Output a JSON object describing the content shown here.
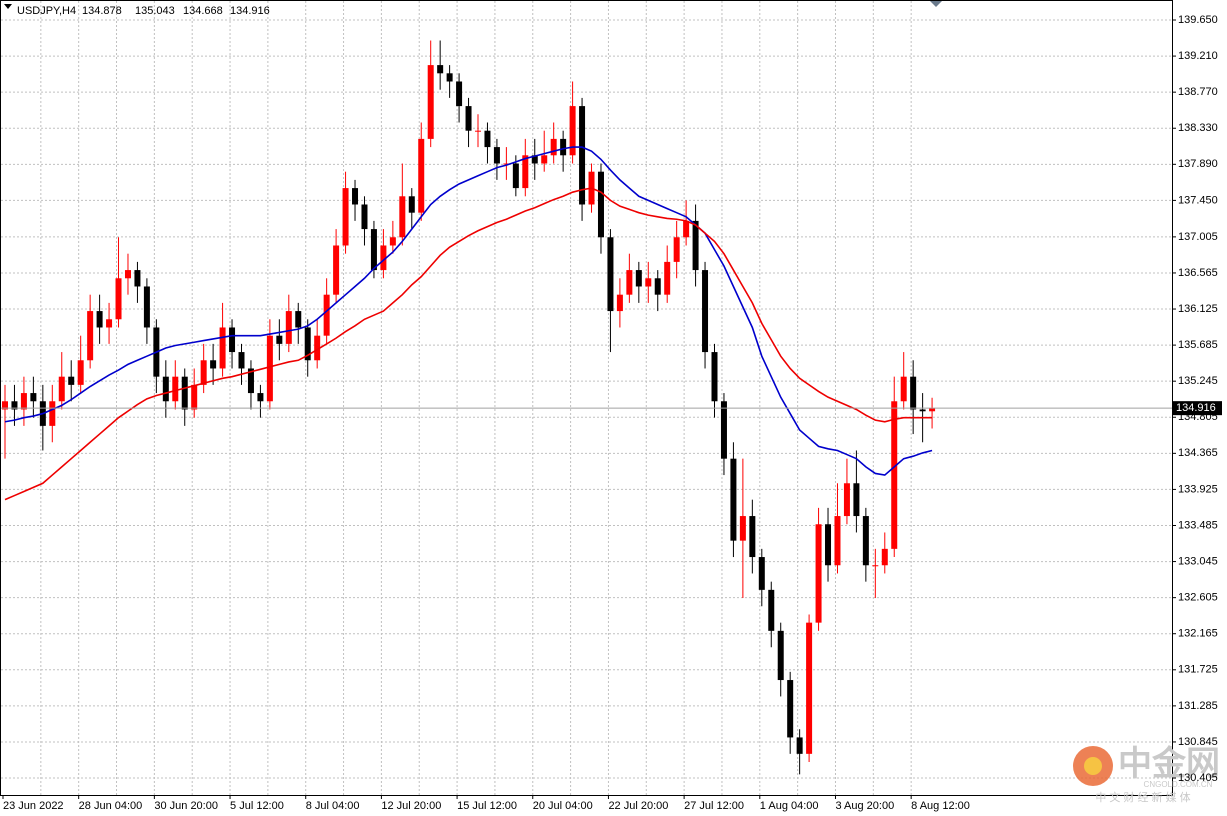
{
  "chart_data": {
    "type": "candlestick",
    "title": "USDJPY,H4",
    "categories": [
      "23 Jun 2022",
      null,
      null,
      null,
      null,
      null,
      null,
      null,
      "28 Jun 04:00",
      null,
      null,
      null,
      null,
      null,
      null,
      null,
      "30 Jun 20:00",
      null,
      null,
      null,
      null,
      null,
      null,
      null,
      "5 Jul 12:00",
      null,
      null,
      null,
      null,
      null,
      null,
      null,
      "8 Jul 04:00",
      null,
      null,
      null,
      null,
      null,
      null,
      null,
      "12 Jul 20:00",
      null,
      null,
      null,
      null,
      null,
      null,
      null,
      "15 Jul 12:00",
      null,
      null,
      null,
      null,
      null,
      null,
      null,
      "20 Jul 04:00",
      null,
      null,
      null,
      null,
      null,
      null,
      null,
      "22 Jul 20:00",
      null,
      null,
      null,
      null,
      null,
      null,
      null,
      "27 Jul 12:00",
      null,
      null,
      null,
      null,
      null,
      null,
      null,
      "1 Aug 04:00",
      null,
      null,
      null,
      null,
      null,
      null,
      null,
      "3 Aug 20:00",
      null,
      null,
      null,
      null,
      null,
      null,
      null,
      "8 Aug 12:00",
      null,
      null
    ],
    "open": [
      134.9,
      135.0,
      134.9,
      135.1,
      135.0,
      134.7,
      135.0,
      135.3,
      135.2,
      135.5,
      136.1,
      135.9,
      136.0,
      136.5,
      136.6,
      136.4,
      135.9,
      135.3,
      135.0,
      135.3,
      134.9,
      135.2,
      135.5,
      135.4,
      135.9,
      135.6,
      135.4,
      135.1,
      135.0,
      135.8,
      135.7,
      136.1,
      135.9,
      135.5,
      135.8,
      136.3,
      136.9,
      137.6,
      137.4,
      137.1,
      136.6,
      136.9,
      137.0,
      137.5,
      137.3,
      138.2,
      139.1,
      139.0,
      138.9,
      138.6,
      138.3,
      138.3,
      138.1,
      137.9,
      137.9,
      137.6,
      138.0,
      137.9,
      138.0,
      138.2,
      138.0,
      138.6,
      137.4,
      137.8,
      137.0,
      136.1,
      136.3,
      136.6,
      136.4,
      136.5,
      136.3,
      136.7,
      137.0,
      137.2,
      136.6,
      135.6,
      135.0,
      134.3,
      133.3,
      133.6,
      133.1,
      132.7,
      132.2,
      131.6,
      130.9,
      130.7,
      132.3,
      133.5,
      133.0,
      133.6,
      134.0,
      133.6,
      133.0,
      133.0,
      133.2,
      135.0,
      135.3,
      134.9,
      134.878
    ],
    "high": [
      135.2,
      135.2,
      135.3,
      135.3,
      135.2,
      135.2,
      135.6,
      135.5,
      135.8,
      136.3,
      136.3,
      136.2,
      137.0,
      136.8,
      136.7,
      136.5,
      136.0,
      135.5,
      135.5,
      135.4,
      135.4,
      135.7,
      135.7,
      136.2,
      136.0,
      135.7,
      135.5,
      135.2,
      136.0,
      136.0,
      136.3,
      136.2,
      136.0,
      136.0,
      136.5,
      137.1,
      137.8,
      137.7,
      137.5,
      137.2,
      137.1,
      137.2,
      137.9,
      137.6,
      138.4,
      139.4,
      139.4,
      139.1,
      139.0,
      138.7,
      138.5,
      138.4,
      138.2,
      138.1,
      138.0,
      138.2,
      138.2,
      138.3,
      138.4,
      138.3,
      138.9,
      138.7,
      137.9,
      137.9,
      137.1,
      136.5,
      136.8,
      136.7,
      136.7,
      136.6,
      136.9,
      137.2,
      137.45,
      137.4,
      136.7,
      135.7,
      135.1,
      134.5,
      134.3,
      133.8,
      133.2,
      132.8,
      132.3,
      131.7,
      131.0,
      132.4,
      133.7,
      133.7,
      134.0,
      134.3,
      134.4,
      133.7,
      133.2,
      133.4,
      135.3,
      135.6,
      135.5,
      135.1,
      135.043
    ],
    "low": [
      134.3,
      134.7,
      134.7,
      134.8,
      134.4,
      134.5,
      134.9,
      135.0,
      135.1,
      135.4,
      135.7,
      135.7,
      135.9,
      136.3,
      136.2,
      135.7,
      135.1,
      134.8,
      134.9,
      134.7,
      134.8,
      135.1,
      135.2,
      135.3,
      135.4,
      135.2,
      134.9,
      134.8,
      134.9,
      135.5,
      135.6,
      135.7,
      135.3,
      135.4,
      135.7,
      136.2,
      136.8,
      137.2,
      136.9,
      136.5,
      136.5,
      136.8,
      136.9,
      137.1,
      137.2,
      138.1,
      138.8,
      138.7,
      138.4,
      138.1,
      138.1,
      137.9,
      137.7,
      137.7,
      137.5,
      137.5,
      137.7,
      137.8,
      137.9,
      137.8,
      137.9,
      137.2,
      137.3,
      136.8,
      135.6,
      135.9,
      136.2,
      136.2,
      136.2,
      136.1,
      136.2,
      136.5,
      136.9,
      136.4,
      135.4,
      134.8,
      134.1,
      133.1,
      132.6,
      132.9,
      132.5,
      132.0,
      131.4,
      130.7,
      130.45,
      130.6,
      132.2,
      132.8,
      132.9,
      133.5,
      133.4,
      132.8,
      132.6,
      132.9,
      133.1,
      134.9,
      134.6,
      134.5,
      134.668
    ],
    "close": [
      135.0,
      134.9,
      135.1,
      135.0,
      134.7,
      135.0,
      135.3,
      135.2,
      135.5,
      136.1,
      135.9,
      136.0,
      136.5,
      136.6,
      136.4,
      135.9,
      135.3,
      135.0,
      135.3,
      134.9,
      135.2,
      135.5,
      135.4,
      135.9,
      135.6,
      135.4,
      135.1,
      135.0,
      135.8,
      135.7,
      136.1,
      135.9,
      135.5,
      135.8,
      136.3,
      136.9,
      137.6,
      137.4,
      137.1,
      136.6,
      136.9,
      137.0,
      137.5,
      137.3,
      138.2,
      139.1,
      139.0,
      138.9,
      138.6,
      138.3,
      138.3,
      138.1,
      137.9,
      137.9,
      137.6,
      138.0,
      137.9,
      138.0,
      138.2,
      138.0,
      138.6,
      137.4,
      137.8,
      137.0,
      136.1,
      136.3,
      136.6,
      136.4,
      136.5,
      136.3,
      136.7,
      137.0,
      137.2,
      136.6,
      135.6,
      135.0,
      134.3,
      133.3,
      133.6,
      133.1,
      132.7,
      132.2,
      131.6,
      130.9,
      130.7,
      132.3,
      133.5,
      133.0,
      133.6,
      134.0,
      133.6,
      133.0,
      133.0,
      133.2,
      135.0,
      135.3,
      134.9,
      134.878,
      134.916
    ],
    "up_color": "#ff0000",
    "down_color": "#000000",
    "ma": [
      {
        "color": "#0000cc",
        "values": [
          134.75,
          134.77,
          134.8,
          134.82,
          134.85,
          134.9,
          134.95,
          135.02,
          135.1,
          135.18,
          135.25,
          135.32,
          135.38,
          135.45,
          135.5,
          135.55,
          135.6,
          135.65,
          135.68,
          135.7,
          135.72,
          135.74,
          135.76,
          135.78,
          135.8,
          135.8,
          135.8,
          135.8,
          135.82,
          135.84,
          135.86,
          135.88,
          135.92,
          136.0,
          136.1,
          136.2,
          136.3,
          136.4,
          136.5,
          136.62,
          136.72,
          136.82,
          136.95,
          137.1,
          137.25,
          137.4,
          137.5,
          137.58,
          137.65,
          137.7,
          137.75,
          137.8,
          137.85,
          137.88,
          137.92,
          137.96,
          137.99,
          138.02,
          138.05,
          138.08,
          138.1,
          138.1,
          138.05,
          137.95,
          137.82,
          137.7,
          137.6,
          137.5,
          137.45,
          137.4,
          137.35,
          137.3,
          137.25,
          137.15,
          137.05,
          136.85,
          136.65,
          136.4,
          136.15,
          135.9,
          135.55,
          135.3,
          135.05,
          134.85,
          134.65,
          134.55,
          134.45,
          134.42,
          134.4,
          134.35,
          134.3,
          134.2,
          134.12,
          134.1,
          134.2,
          134.3,
          134.33,
          134.37,
          134.4
        ]
      },
      {
        "color": "#ee0000",
        "values": [
          133.8,
          133.85,
          133.9,
          133.95,
          134.0,
          134.1,
          134.2,
          134.3,
          134.4,
          134.5,
          134.6,
          134.7,
          134.8,
          134.88,
          134.96,
          135.03,
          135.07,
          135.1,
          135.13,
          135.16,
          135.19,
          135.22,
          135.25,
          135.28,
          135.3,
          135.33,
          135.36,
          135.39,
          135.42,
          135.45,
          135.48,
          135.5,
          135.56,
          135.63,
          135.7,
          135.77,
          135.85,
          135.92,
          136.0,
          136.05,
          136.1,
          136.2,
          136.3,
          136.42,
          136.52,
          136.65,
          136.78,
          136.88,
          136.95,
          137.02,
          137.08,
          137.13,
          137.18,
          137.22,
          137.27,
          137.32,
          137.36,
          137.41,
          137.46,
          137.5,
          137.55,
          137.58,
          137.6,
          137.55,
          137.45,
          137.38,
          137.34,
          137.3,
          137.27,
          137.25,
          137.23,
          137.22,
          137.2,
          137.15,
          137.05,
          136.95,
          136.8,
          136.6,
          136.4,
          136.2,
          135.95,
          135.75,
          135.55,
          135.4,
          135.28,
          135.2,
          135.12,
          135.05,
          135.0,
          134.95,
          134.9,
          134.83,
          134.77,
          134.75,
          134.78,
          134.8,
          134.8,
          134.8,
          134.8
        ]
      }
    ],
    "ylim": [
      130.198,
      139.894
    ],
    "yticks": [
      {
        "value": 139.65,
        "label": "139.650"
      },
      {
        "value": 139.21,
        "label": "139.210"
      },
      {
        "value": 138.77,
        "label": "138.770"
      },
      {
        "value": 138.33,
        "label": "138.330"
      },
      {
        "value": 137.89,
        "label": "137.890"
      },
      {
        "value": 137.45,
        "label": "137.450"
      },
      137.005,
      136.565,
      136.125,
      135.685,
      135.245,
      134.805,
      134.365,
      133.925,
      133.485,
      133.045,
      132.605,
      132.165,
      131.725,
      131.285,
      130.845,
      130.405
    ],
    "grid": true
  },
  "watermark": {
    "logo": "中金网",
    "url": "CNGOLD.COM.CN",
    "slogan": "中 文 财 经 新 媒 体"
  }
}
